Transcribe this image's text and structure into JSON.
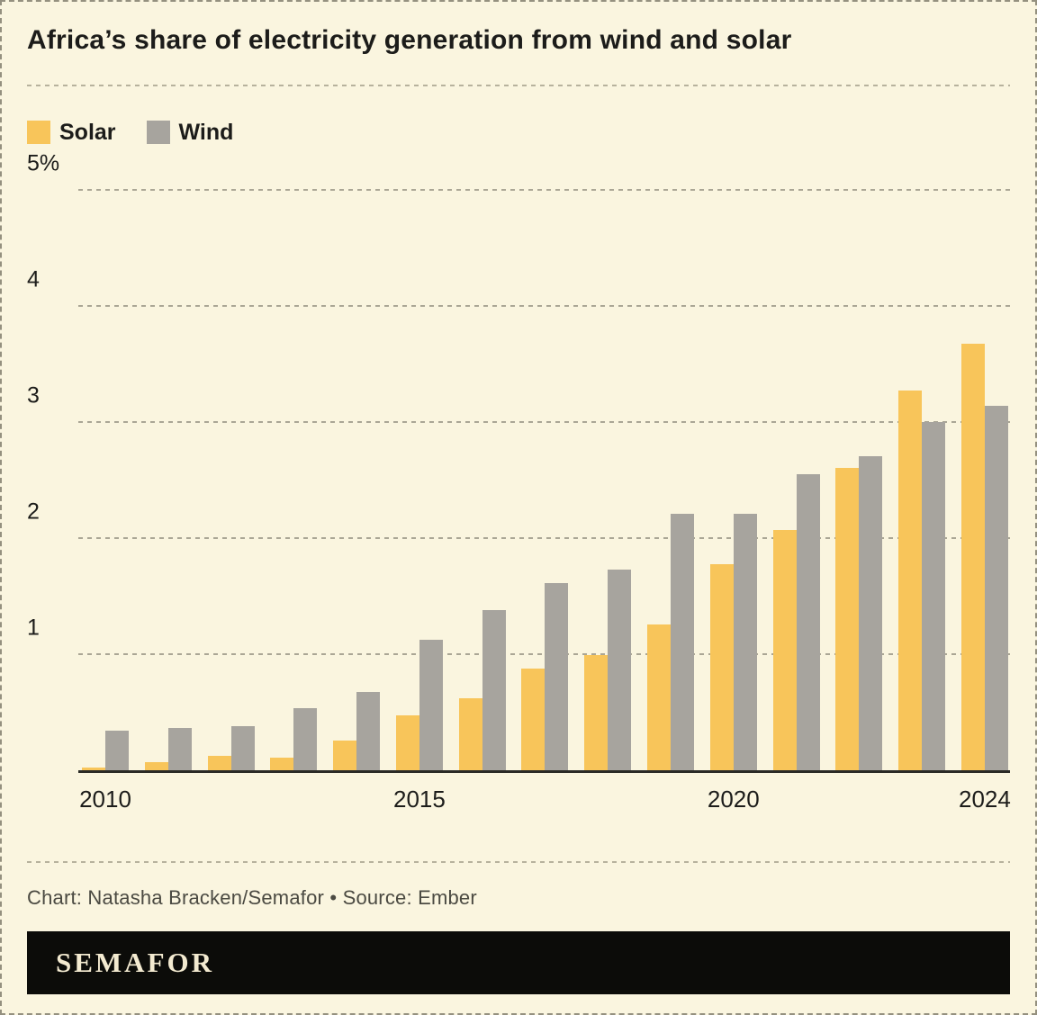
{
  "title": "Africa’s share of electricity generation from wind and solar",
  "caption": "Chart: Natasha Bracken/Semafor • Source: Ember",
  "footer": {
    "brand": "SEMAFOR"
  },
  "colors": {
    "background": "#faf5df",
    "solar": "#f8c55a",
    "wind": "#a7a49e",
    "axis": "#2a2a26",
    "grid": "#aaa695",
    "footer_bg": "#0c0c09",
    "footer_text": "#f3ead0"
  },
  "chart_data": {
    "type": "bar",
    "title": "Africa’s share of electricity generation from wind and solar",
    "categories": [
      "2010",
      "2011",
      "2012",
      "2013",
      "2014",
      "2015",
      "2016",
      "2017",
      "2018",
      "2019",
      "2020",
      "2021",
      "2022",
      "2023",
      "2024"
    ],
    "series": [
      {
        "name": "Solar",
        "color": "#f8c55a",
        "values": [
          0.03,
          0.08,
          0.13,
          0.12,
          0.26,
          0.48,
          0.63,
          0.88,
          1.0,
          1.26,
          1.78,
          2.08,
          2.61,
          3.28,
          3.68
        ]
      },
      {
        "name": "Wind",
        "color": "#a7a49e",
        "values": [
          0.35,
          0.37,
          0.39,
          0.54,
          0.68,
          1.13,
          1.39,
          1.62,
          1.74,
          2.22,
          2.22,
          2.56,
          2.71,
          3.01,
          3.15
        ]
      }
    ],
    "xlabel": "",
    "ylabel": "",
    "ylim": [
      0,
      5
    ],
    "yticks": [
      {
        "value": 5,
        "label": "5%"
      },
      {
        "value": 4,
        "label": "4"
      },
      {
        "value": 3,
        "label": "3"
      },
      {
        "value": 2,
        "label": "2"
      },
      {
        "value": 1,
        "label": "1"
      }
    ],
    "xticks": [
      {
        "index": 0,
        "label": "2010"
      },
      {
        "index": 5,
        "label": "2015"
      },
      {
        "index": 10,
        "label": "2020"
      },
      {
        "index": 14,
        "label": "2024"
      }
    ],
    "grid": "horizontal-dashed",
    "legend_position": "top-left"
  }
}
